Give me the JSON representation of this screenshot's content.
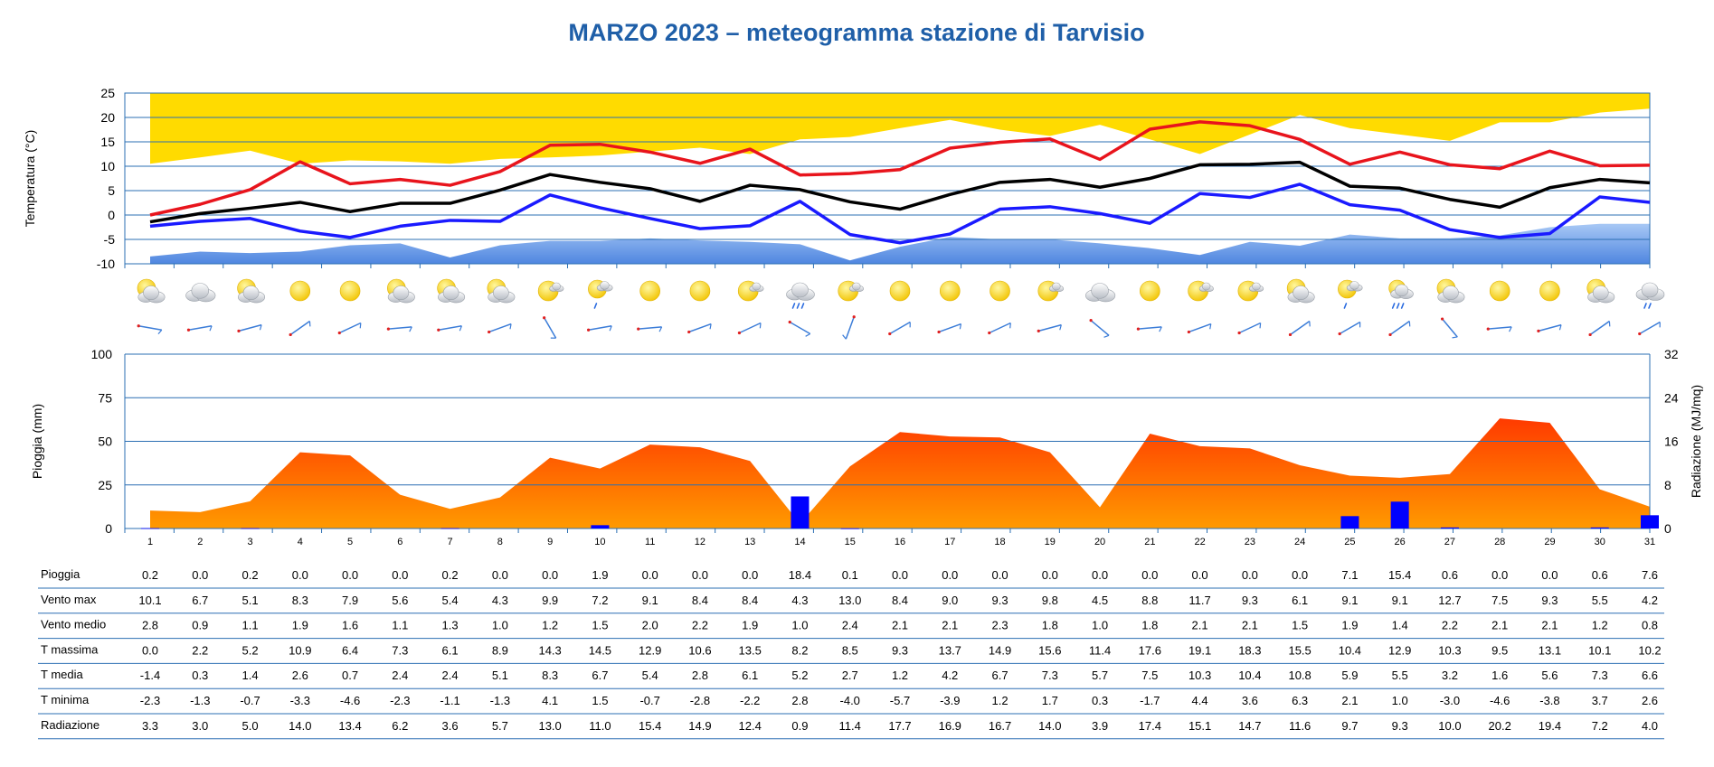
{
  "title": "MARZO 2023 – meteogramma stazione di Tarvisio",
  "colors": {
    "title": "#1f5fa8",
    "tmax": "#e8141c",
    "tmean": "#000000",
    "tmin": "#1a1aff",
    "grid": "#2b6fb3",
    "climate_band": "#ffdb00",
    "low_band": "#4f86e0",
    "rain": "#0000ff",
    "radiation_top": "#ff3a00",
    "radiation_bottom": "#ff9a00"
  },
  "chart_data": [
    {
      "id": "temperature",
      "type": "line",
      "ylabel": "Temperatura (°C)",
      "ylim": [
        -10,
        25
      ],
      "yticks": [
        25,
        20,
        15,
        10,
        5,
        0,
        -5,
        -10
      ],
      "x": [
        1,
        2,
        3,
        4,
        5,
        6,
        7,
        8,
        9,
        10,
        11,
        12,
        13,
        14,
        15,
        16,
        17,
        18,
        19,
        20,
        21,
        22,
        23,
        24,
        25,
        26,
        27,
        28,
        29,
        30,
        31
      ],
      "series": [
        {
          "name": "T massima",
          "values": [
            0.0,
            2.2,
            5.2,
            10.9,
            6.4,
            7.3,
            6.1,
            8.9,
            14.3,
            14.5,
            12.9,
            10.6,
            13.5,
            8.2,
            8.5,
            9.3,
            13.7,
            14.9,
            15.6,
            11.4,
            17.6,
            19.1,
            18.3,
            15.5,
            10.4,
            12.9,
            10.3,
            9.5,
            13.1,
            10.1,
            10.2
          ]
        },
        {
          "name": "T media",
          "values": [
            -1.4,
            0.3,
            1.4,
            2.6,
            0.7,
            2.4,
            2.4,
            5.1,
            8.3,
            6.7,
            5.4,
            2.8,
            6.1,
            5.2,
            2.7,
            1.2,
            4.2,
            6.7,
            7.3,
            5.7,
            7.5,
            10.3,
            10.4,
            10.8,
            5.9,
            5.5,
            3.2,
            1.6,
            5.6,
            7.3,
            6.6
          ]
        },
        {
          "name": "T minima",
          "values": [
            -2.3,
            -1.3,
            -0.7,
            -3.3,
            -4.6,
            -2.3,
            -1.1,
            -1.3,
            4.1,
            1.5,
            -0.7,
            -2.8,
            -2.2,
            2.8,
            -4.0,
            -5.7,
            -3.9,
            1.2,
            1.7,
            0.3,
            -1.7,
            4.4,
            3.6,
            6.3,
            2.1,
            1.0,
            -3.0,
            -4.6,
            -3.8,
            3.7,
            2.6
          ]
        }
      ],
      "climate_max_band": [
        10.5,
        11.8,
        13.2,
        10.5,
        11.2,
        11.0,
        10.5,
        11.5,
        11.8,
        12.2,
        13.0,
        13.8,
        12.5,
        15.5,
        16.0,
        17.8,
        19.5,
        17.5,
        16.2,
        18.5,
        15.5,
        12.5,
        16.5,
        20.5,
        17.8,
        16.5,
        15.2,
        19.0,
        19.0,
        21.0,
        21.8
      ],
      "climate_min_band": [
        -8.5,
        -7.5,
        -7.8,
        -7.5,
        -6.2,
        -5.8,
        -8.7,
        -6.2,
        -5.3,
        -5.3,
        -4.8,
        -5.2,
        -5.5,
        -6.0,
        -9.3,
        -6.5,
        -4.5,
        -5.0,
        -5.0,
        -5.8,
        -6.8,
        -8.2,
        -5.5,
        -6.3,
        -4.0,
        -4.8,
        -4.8,
        -4.2,
        -2.5,
        -1.8,
        -1.8
      ]
    },
    {
      "id": "precip-radiation",
      "type": "bar",
      "ylabel": "Pioggia (mm)",
      "ylabel_right": "Radiazione (MJ/mq)",
      "ylim": [
        0,
        100
      ],
      "yticks": [
        100,
        75,
        50,
        25,
        0
      ],
      "ylim_right": [
        0,
        32
      ],
      "yticks_right": [
        32,
        24,
        16,
        8,
        0
      ],
      "categories": [
        "1",
        "2",
        "3",
        "4",
        "5",
        "6",
        "7",
        "8",
        "9",
        "10",
        "11",
        "12",
        "13",
        "14",
        "15",
        "16",
        "17",
        "18",
        "19",
        "20",
        "21",
        "22",
        "23",
        "24",
        "25",
        "26",
        "27",
        "28",
        "29",
        "30",
        "31"
      ],
      "series": [
        {
          "name": "Pioggia",
          "values": [
            0.2,
            0.0,
            0.2,
            0.0,
            0.0,
            0.0,
            0.2,
            0.0,
            0.0,
            1.9,
            0.0,
            0.0,
            0.0,
            18.4,
            0.1,
            0.0,
            0.0,
            0.0,
            0.0,
            0.0,
            0.0,
            0.0,
            0.0,
            0.0,
            7.1,
            15.4,
            0.6,
            0.0,
            0.0,
            0.6,
            7.6
          ]
        },
        {
          "name": "Radiazione",
          "values": [
            3.3,
            3.0,
            5.0,
            14.0,
            13.4,
            6.2,
            3.6,
            5.7,
            13.0,
            11.0,
            15.4,
            14.9,
            12.4,
            0.9,
            11.4,
            17.7,
            16.9,
            16.7,
            14.0,
            3.9,
            17.4,
            15.1,
            14.7,
            11.6,
            9.7,
            9.3,
            10.0,
            20.2,
            19.4,
            7.2,
            4.0
          ]
        }
      ]
    },
    {
      "id": "daily-table",
      "type": "table",
      "rows": [
        {
          "label": "Pioggia",
          "values": [
            "0.2",
            "0.0",
            "0.2",
            "0.0",
            "0.0",
            "0.0",
            "0.2",
            "0.0",
            "0.0",
            "1.9",
            "0.0",
            "0.0",
            "0.0",
            "18.4",
            "0.1",
            "0.0",
            "0.0",
            "0.0",
            "0.0",
            "0.0",
            "0.0",
            "0.0",
            "0.0",
            "0.0",
            "7.1",
            "15.4",
            "0.6",
            "0.0",
            "0.0",
            "0.6",
            "7.6"
          ]
        },
        {
          "label": "Vento max",
          "values": [
            "10.1",
            "6.7",
            "5.1",
            "8.3",
            "7.9",
            "5.6",
            "5.4",
            "4.3",
            "9.9",
            "7.2",
            "9.1",
            "8.4",
            "8.4",
            "4.3",
            "13.0",
            "8.4",
            "9.0",
            "9.3",
            "9.8",
            "4.5",
            "8.8",
            "11.7",
            "9.3",
            "6.1",
            "9.1",
            "9.1",
            "12.7",
            "7.5",
            "9.3",
            "5.5",
            "4.2"
          ]
        },
        {
          "label": "Vento medio",
          "values": [
            "2.8",
            "0.9",
            "1.1",
            "1.9",
            "1.6",
            "1.1",
            "1.3",
            "1.0",
            "1.2",
            "1.5",
            "2.0",
            "2.2",
            "1.9",
            "1.0",
            "2.4",
            "2.1",
            "2.1",
            "2.3",
            "1.8",
            "1.0",
            "1.8",
            "2.1",
            "2.1",
            "1.5",
            "1.9",
            "1.4",
            "2.2",
            "2.1",
            "2.1",
            "1.2",
            "0.8"
          ]
        },
        {
          "label": "T massima",
          "values": [
            "0.0",
            "2.2",
            "5.2",
            "10.9",
            "6.4",
            "7.3",
            "6.1",
            "8.9",
            "14.3",
            "14.5",
            "12.9",
            "10.6",
            "13.5",
            "8.2",
            "8.5",
            "9.3",
            "13.7",
            "14.9",
            "15.6",
            "11.4",
            "17.6",
            "19.1",
            "18.3",
            "15.5",
            "10.4",
            "12.9",
            "10.3",
            "9.5",
            "13.1",
            "10.1",
            "10.2"
          ]
        },
        {
          "label": "T media",
          "values": [
            "-1.4",
            "0.3",
            "1.4",
            "2.6",
            "0.7",
            "2.4",
            "2.4",
            "5.1",
            "8.3",
            "6.7",
            "5.4",
            "2.8",
            "6.1",
            "5.2",
            "2.7",
            "1.2",
            "4.2",
            "6.7",
            "7.3",
            "5.7",
            "7.5",
            "10.3",
            "10.4",
            "10.8",
            "5.9",
            "5.5",
            "3.2",
            "1.6",
            "5.6",
            "7.3",
            "6.6"
          ]
        },
        {
          "label": "T minima",
          "values": [
            "-2.3",
            "-1.3",
            "-0.7",
            "-3.3",
            "-4.6",
            "-2.3",
            "-1.1",
            "-1.3",
            "4.1",
            "1.5",
            "-0.7",
            "-2.8",
            "-2.2",
            "2.8",
            "-4.0",
            "-5.7",
            "-3.9",
            "1.2",
            "1.7",
            "0.3",
            "-1.7",
            "4.4",
            "3.6",
            "6.3",
            "2.1",
            "1.0",
            "-3.0",
            "-4.6",
            "-3.8",
            "3.7",
            "2.6"
          ]
        },
        {
          "label": "Radiazione",
          "values": [
            "3.3",
            "3.0",
            "5.0",
            "14.0",
            "13.4",
            "6.2",
            "3.6",
            "5.7",
            "13.0",
            "11.0",
            "15.4",
            "14.9",
            "12.4",
            "0.9",
            "11.4",
            "17.7",
            "16.9",
            "16.7",
            "14.0",
            "3.9",
            "17.4",
            "15.1",
            "14.7",
            "11.6",
            "9.7",
            "9.3",
            "10.0",
            "20.2",
            "19.4",
            "7.2",
            "4.0"
          ]
        }
      ]
    }
  ],
  "weather_icons": [
    "partly-cloudy",
    "cloudy",
    "partly-cloudy",
    "sunny",
    "sunny",
    "partly-cloudy",
    "partly-cloudy",
    "partly-cloudy",
    "sun-cloud",
    "sun-cloud-rain",
    "sunny",
    "sunny",
    "sun-cloud",
    "cloud-heavy-rain",
    "sun-cloud",
    "sunny",
    "sunny",
    "sunny",
    "sun-cloud",
    "cloudy",
    "sunny",
    "sun-cloud",
    "sun-cloud",
    "partly-cloudy",
    "sun-cloud-rain",
    "sun-cloud-heavy-rain",
    "partly-cloudy",
    "sunny",
    "sunny",
    "partly-cloudy",
    "cloud-rain"
  ],
  "wind_directions_deg": [
    280,
    260,
    255,
    235,
    245,
    265,
    260,
    250,
    330,
    260,
    265,
    250,
    245,
    300,
    20,
    240,
    250,
    245,
    255,
    310,
    265,
    250,
    245,
    235,
    240,
    235,
    320,
    265,
    255,
    235,
    240
  ]
}
